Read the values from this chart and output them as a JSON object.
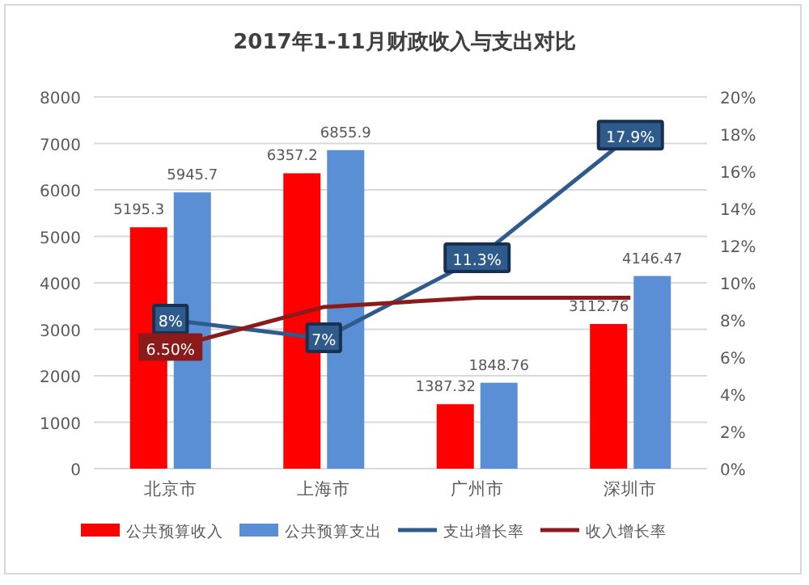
{
  "chart_data": {
    "type": "bar",
    "title": "2017年1-11月财政收入与支出对比",
    "categories": [
      "北京市",
      "上海市",
      "广州市",
      "深圳市"
    ],
    "series": [
      {
        "name": "公共预算收入",
        "color": "#ff0000",
        "values": [
          5195.3,
          6357.2,
          1387.32,
          3112.76
        ],
        "value_labels": [
          "5195.3",
          "6357.2",
          "1387.32",
          "3112.76"
        ]
      },
      {
        "name": "公共预算支出",
        "color": "#5b8fd5",
        "values": [
          5945.7,
          6855.9,
          1848.76,
          4146.47
        ],
        "value_labels": [
          "5945.7",
          "6855.9",
          "1848.76",
          "4146.47"
        ]
      },
      {
        "name": "支出增长率",
        "type": "line",
        "axis": "y2",
        "color": "#2f5b8c",
        "marker": "square",
        "values": [
          8,
          7,
          11.3,
          17.9
        ],
        "value_labels": [
          "8%",
          "7%",
          "11.3%",
          "17.9%"
        ]
      },
      {
        "name": "收入增长率",
        "type": "line",
        "axis": "y2",
        "color": "#8b1a1a",
        "values": [
          6.5,
          8.7,
          9.2,
          9.2
        ],
        "value_labels": [
          "6.50%",
          null,
          null,
          null
        ]
      }
    ],
    "ylim": [
      0,
      8000
    ],
    "yticks": [
      0,
      1000,
      2000,
      3000,
      4000,
      5000,
      6000,
      7000,
      8000
    ],
    "y2lim": [
      0,
      20
    ],
    "y2ticks": [
      {
        "value": 0,
        "label": "0%"
      },
      {
        "value": 2,
        "label": "2%"
      },
      {
        "value": 4,
        "label": "4%"
      },
      {
        "value": 6,
        "label": "6%"
      },
      {
        "value": 8,
        "label": "8%"
      },
      {
        "value": 10,
        "label": "10%"
      },
      {
        "value": 12,
        "label": "12%"
      },
      {
        "value": 14,
        "label": "14%"
      },
      {
        "value": 16,
        "label": "16%"
      },
      {
        "value": 18,
        "label": "18%"
      },
      {
        "value": 20,
        "label": "20%"
      }
    ],
    "grid": "y",
    "legend": "bottom"
  }
}
